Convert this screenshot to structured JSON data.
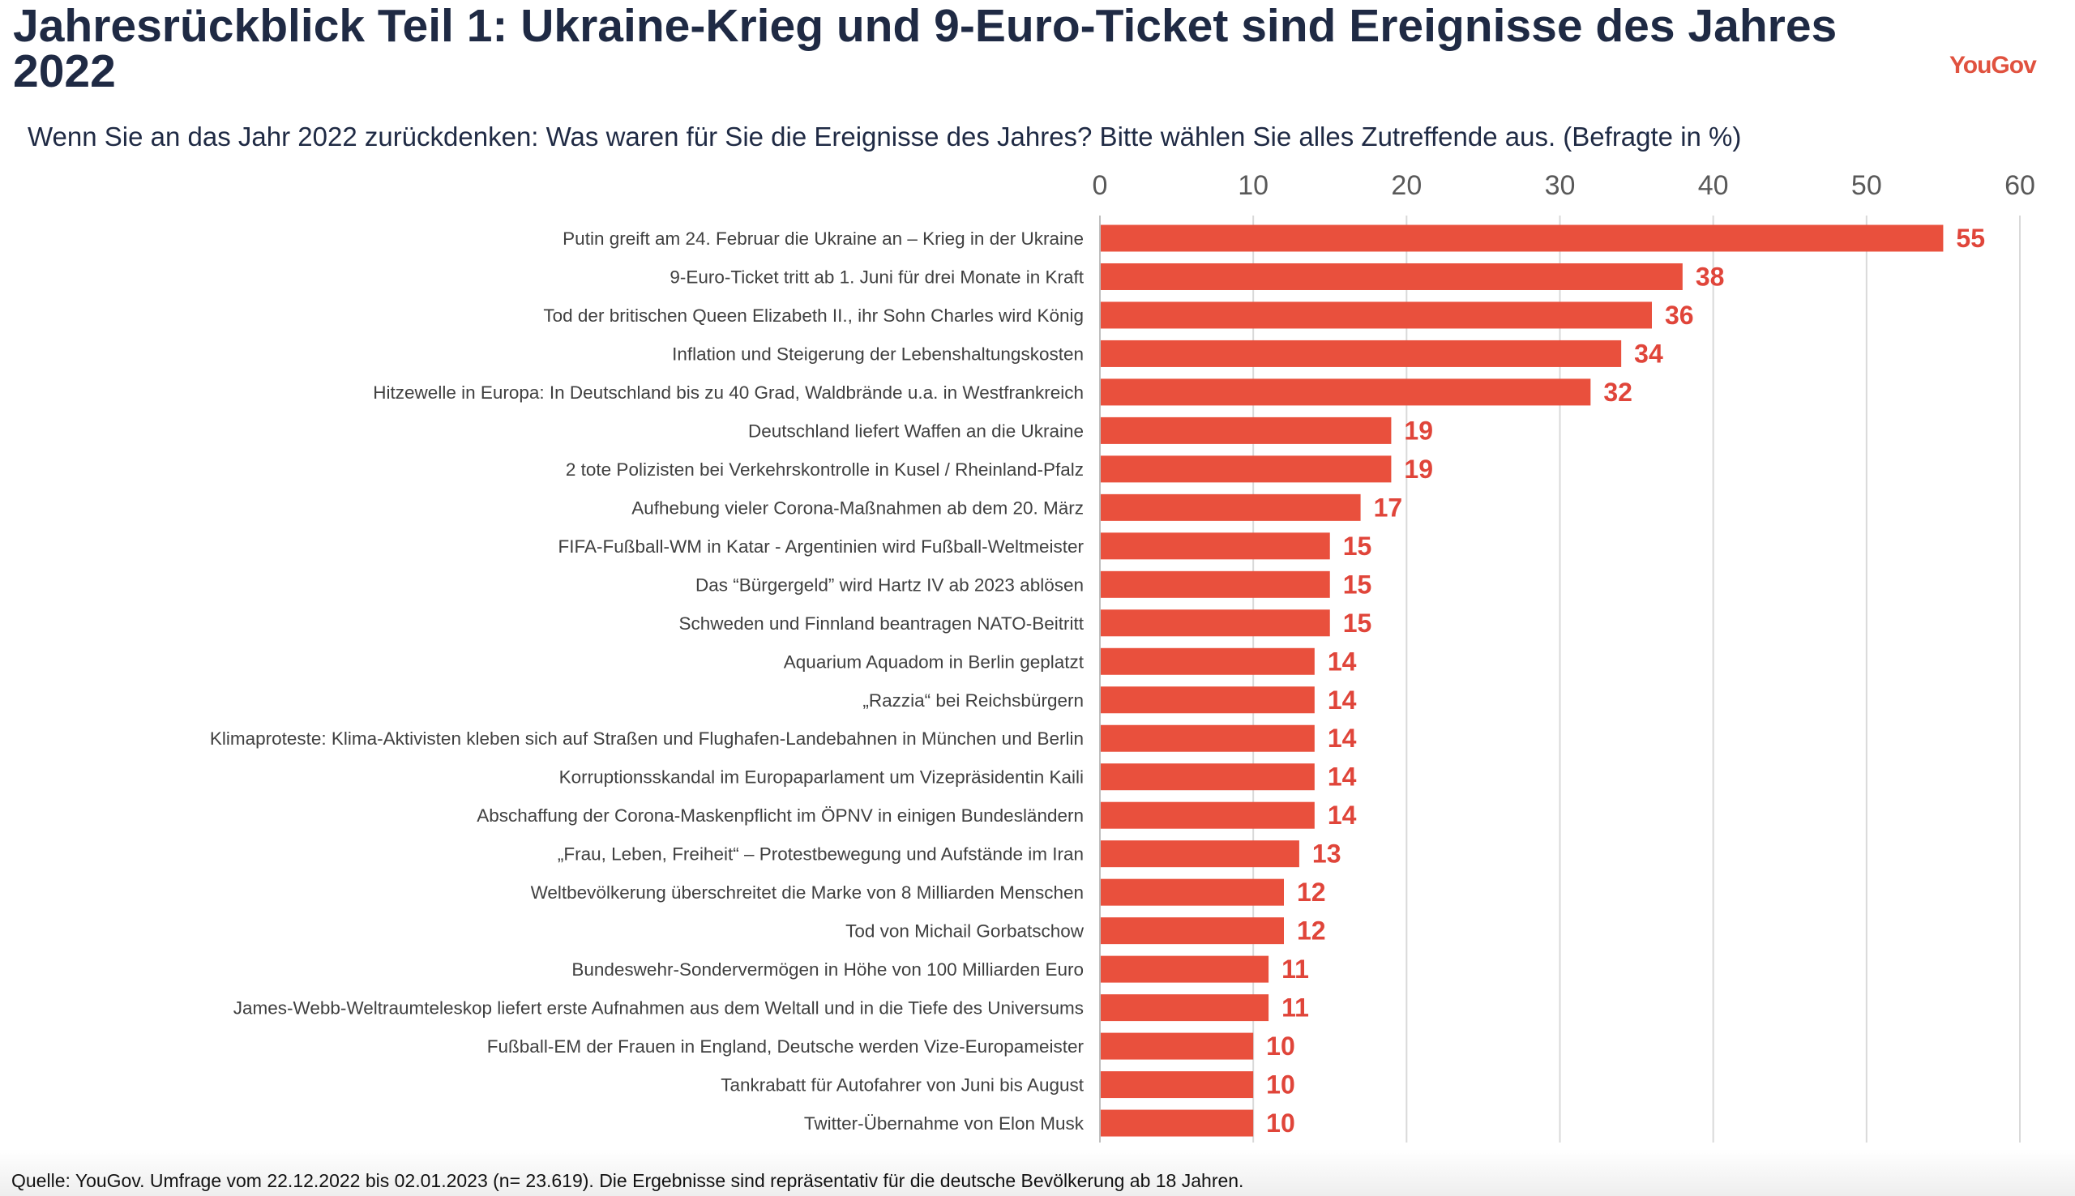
{
  "header": {
    "title": "Jahresrückblick Teil 1: Ukraine-Krieg und 9-Euro-Ticket sind Ereignisse des Jahres 2022",
    "logo": "YouGov",
    "subtitle": "Wenn Sie an das Jahr 2022 zurückdenken: Was waren für Sie die Ereignisse des Jahres? Bitte wählen Sie alles Zutreffende aus. (Befragte in %)"
  },
  "footer": {
    "source": "Quelle: YouGov. Umfrage vom 22.12.2022 bis 02.01.2023 (n= 23.619). Die Ergebnisse sind repräsentativ für die deutsche Bevölkerung ab 18 Jahren."
  },
  "colors": {
    "bar": "#e9503d",
    "value_label": "#e0453a",
    "title": "#1f2a44",
    "grid": "#d9d9d9"
  },
  "chart_data": {
    "type": "bar",
    "orientation": "horizontal",
    "title": "Jahresrückblick Teil 1: Ukraine-Krieg und 9-Euro-Ticket sind Ereignisse des Jahres 2022",
    "xlabel": "Befragte in %",
    "xlim": [
      0,
      60
    ],
    "xticks": [
      "0",
      "10",
      "20",
      "30",
      "40",
      "50",
      "60"
    ],
    "grid": true,
    "categories": [
      "Putin greift am 24. Februar die Ukraine an – Krieg in der Ukraine",
      "9-Euro-Ticket tritt ab 1. Juni für drei Monate in Kraft",
      "Tod der britischen Queen Elizabeth II., ihr Sohn Charles wird König",
      "Inflation und Steigerung der Lebenshaltungskosten",
      "Hitzewelle in Europa: In Deutschland bis zu 40 Grad, Waldbrände u.a. in Westfrankreich",
      "Deutschland liefert Waffen an die Ukraine",
      "2 tote Polizisten bei Verkehrskontrolle in Kusel / Rheinland-Pfalz",
      "Aufhebung vieler Corona-Maßnahmen ab dem 20. März",
      "FIFA-Fußball-WM in Katar - Argentinien wird Fußball-Weltmeister",
      "Das “Bürgergeld” wird Hartz IV ab 2023 ablösen",
      "Schweden und Finnland beantragen NATO-Beitritt",
      "Aquarium Aquadom in Berlin geplatzt",
      "„Razzia“ bei Reichsbürgern",
      "Klimaproteste: Klima-Aktivisten kleben sich auf Straßen und Flughafen-Landebahnen in München und Berlin",
      "Korruptionsskandal im Europaparlament um Vizepräsidentin Kaili",
      "Abschaffung der Corona-Maskenpflicht im ÖPNV in einigen Bundesländern",
      "„Frau, Leben, Freiheit“ – Protestbewegung und Aufstände im Iran",
      "Weltbevölkerung überschreitet die Marke von 8 Milliarden Menschen",
      "Tod von Michail Gorbatschow",
      "Bundeswehr-Sondervermögen in Höhe von 100 Milliarden Euro",
      "James-Webb-Weltraumteleskop liefert erste Aufnahmen aus dem Weltall und in die Tiefe des Universums",
      "Fußball-EM der Frauen in England, Deutsche werden Vize-Europameister",
      "Tankrabatt für Autofahrer von Juni bis August",
      "Twitter-Übernahme von Elon Musk"
    ],
    "values": [
      55,
      38,
      36,
      34,
      32,
      19,
      19,
      17,
      15,
      15,
      15,
      14,
      14,
      14,
      14,
      14,
      13,
      12,
      12,
      11,
      11,
      10,
      10,
      10
    ]
  }
}
